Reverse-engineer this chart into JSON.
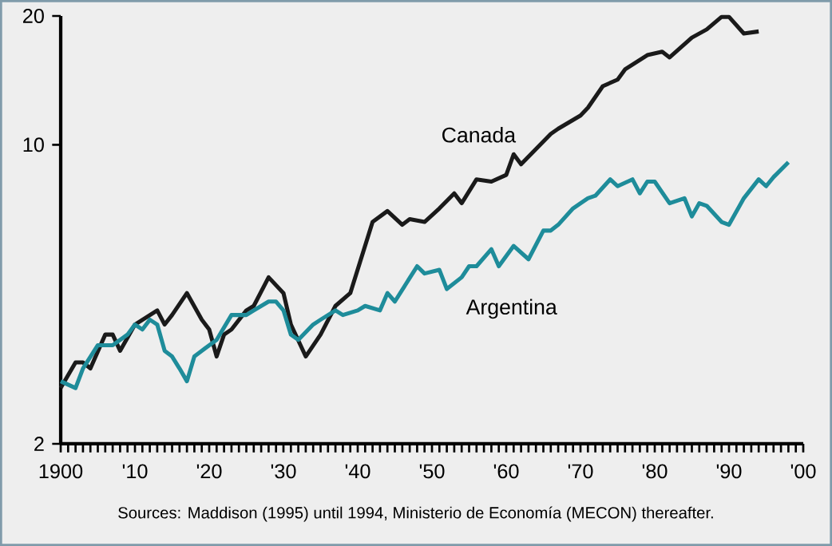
{
  "chart_data": {
    "type": "line",
    "xlim": [
      1900,
      2000
    ],
    "xticks": [
      {
        "value": 1900,
        "label": "1900"
      },
      {
        "value": 1910,
        "label": "'10"
      },
      {
        "value": 1920,
        "label": "'20"
      },
      {
        "value": 1930,
        "label": "'30"
      },
      {
        "value": 1940,
        "label": "'40"
      },
      {
        "value": 1950,
        "label": "'50"
      },
      {
        "value": 1960,
        "label": "'60"
      },
      {
        "value": 1970,
        "label": "'70"
      },
      {
        "value": 1980,
        "label": "'80"
      },
      {
        "value": 1990,
        "label": "'90"
      },
      {
        "value": 2000,
        "label": "'00"
      }
    ],
    "ylim": [
      2,
      20
    ],
    "yticks": [
      2,
      10,
      20
    ],
    "log": "y",
    "legend": false,
    "grid": false,
    "line_style": "solid",
    "series": [
      {
        "name": "Canada",
        "color": "#1a1a1a",
        "x": [
          1900,
          1902,
          1903,
          1904,
          1906,
          1907,
          1908,
          1910,
          1913,
          1914,
          1915,
          1917,
          1919,
          1920,
          1921,
          1922,
          1923,
          1925,
          1926,
          1928,
          1930,
          1931,
          1933,
          1935,
          1937,
          1939,
          1942,
          1944,
          1946,
          1947,
          1949,
          1951,
          1953,
          1954,
          1956,
          1958,
          1960,
          1961,
          1962,
          1966,
          1967,
          1970,
          1971,
          1973,
          1975,
          1976,
          1979,
          1981,
          1982,
          1985,
          1987,
          1989,
          1990,
          1992,
          1994
        ],
        "values": [
          2.7,
          3.1,
          3.1,
          3.0,
          3.6,
          3.6,
          3.3,
          3.8,
          4.1,
          3.8,
          4.0,
          4.5,
          3.9,
          3.7,
          3.2,
          3.6,
          3.7,
          4.1,
          4.2,
          4.9,
          4.5,
          3.8,
          3.2,
          3.6,
          4.2,
          4.5,
          6.6,
          7.0,
          6.5,
          6.7,
          6.6,
          7.1,
          7.7,
          7.3,
          8.3,
          8.2,
          8.5,
          9.5,
          9.0,
          10.6,
          10.9,
          11.7,
          12.2,
          13.7,
          14.2,
          15.0,
          16.2,
          16.5,
          16.0,
          17.8,
          18.6,
          19.9,
          19.9,
          18.2,
          18.4
        ]
      },
      {
        "name": "Argentina",
        "color": "#1e8c9a",
        "x": [
          1900,
          1902,
          1903,
          1905,
          1907,
          1909,
          1910,
          1911,
          1912,
          1913,
          1914,
          1915,
          1916,
          1917,
          1918,
          1919,
          1921,
          1923,
          1925,
          1926,
          1928,
          1929,
          1930,
          1931,
          1932,
          1934,
          1935,
          1937,
          1938,
          1940,
          1941,
          1943,
          1944,
          1945,
          1948,
          1949,
          1951,
          1952,
          1954,
          1955,
          1956,
          1958,
          1959,
          1961,
          1963,
          1965,
          1966,
          1967,
          1969,
          1971,
          1972,
          1974,
          1975,
          1977,
          1978,
          1979,
          1980,
          1982,
          1984,
          1985,
          1986,
          1987,
          1989,
          1990,
          1992,
          1994,
          1995,
          1996,
          1998
        ],
        "values": [
          2.8,
          2.7,
          3.0,
          3.4,
          3.4,
          3.6,
          3.8,
          3.7,
          3.9,
          3.8,
          3.3,
          3.2,
          3.0,
          2.8,
          3.2,
          3.3,
          3.5,
          4.0,
          4.0,
          4.1,
          4.3,
          4.3,
          4.1,
          3.6,
          3.5,
          3.8,
          3.9,
          4.1,
          4.0,
          4.1,
          4.2,
          4.1,
          4.5,
          4.3,
          5.2,
          5.0,
          5.1,
          4.6,
          4.9,
          5.2,
          5.2,
          5.7,
          5.2,
          5.8,
          5.4,
          6.3,
          6.3,
          6.5,
          7.1,
          7.5,
          7.6,
          8.3,
          8.0,
          8.3,
          7.7,
          8.2,
          8.2,
          7.3,
          7.5,
          6.8,
          7.3,
          7.2,
          6.6,
          6.5,
          7.5,
          8.3,
          8.0,
          8.4,
          9.1
        ]
      }
    ],
    "annotations": [
      "Sources: Maddison (1995) until 1994, Ministerio de Economía (MECON) thereafter."
    ]
  }
}
